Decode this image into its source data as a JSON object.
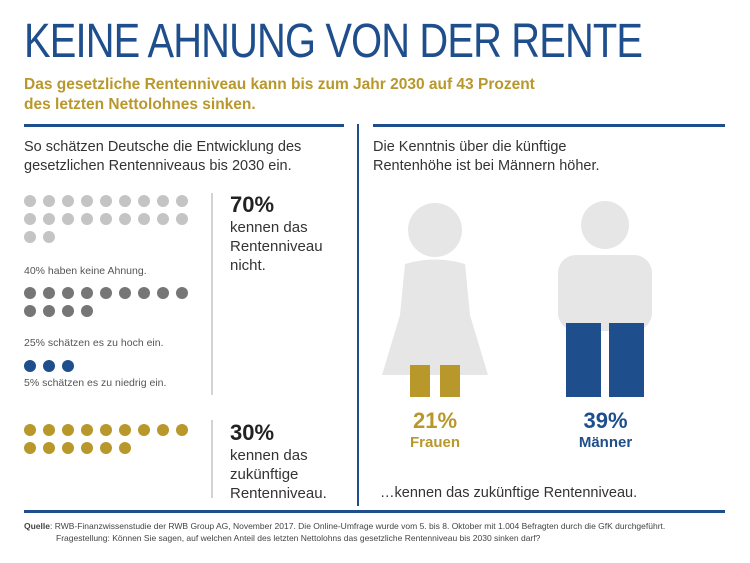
{
  "header": {
    "title": "KEINE AHNUNG VON DER RENTE",
    "subtitle_line1": "Das gesetzliche Rentenniveau kann bis zum Jahr 2030 auf 43 Prozent",
    "subtitle_line2": "des letzten Nettolohnes sinken."
  },
  "left": {
    "intro_line1": "So schätzen Deutsche die Entwicklung des",
    "intro_line2": "gesetzlichen Rentenniveaus bis 2030 ein.",
    "groups": [
      {
        "label": "40% haben keine Ahnung.",
        "count": 40,
        "color": "#c4c4c4"
      },
      {
        "label": "25% schätzen es zu hoch ein.",
        "count": 25,
        "color": "#767676"
      },
      {
        "label": "5% schätzen es zu niedrig ein.",
        "count": 5,
        "color": "#1e4e8c"
      },
      {
        "label": "",
        "count": 30,
        "color": "#b8972b"
      }
    ],
    "stat1": {
      "value": "70%",
      "line1": "kennen das",
      "line2": "Rentenniveau",
      "line3": "nicht."
    },
    "stat2": {
      "value": "30%",
      "line1": "kennen das",
      "line2": "zukünftige",
      "line3": "Rentenniveau."
    }
  },
  "right": {
    "intro_line1": "Die Kenntnis über die künftige",
    "intro_line2": "Rentenhöhe ist bei Männern höher.",
    "women": {
      "value": "21%",
      "label": "Frauen",
      "color": "#b8972b"
    },
    "men": {
      "value": "39%",
      "label": "Männer",
      "color": "#1e4e8c"
    },
    "footer_text": "…kennen das zukünftige Rentenniveau."
  },
  "source": {
    "label": "Quelle",
    "line1": ": RWB-Finanzwissenstudie der RWB Group AG, November 2017. Die Online-Umfrage wurde vom 5. bis 8. Oktober mit 1.004 Befragten durch die GfK durchgeführt.",
    "line2": "Fragestellung: Können Sie sagen, auf welchen Anteil des letzten Nettolohns das gesetzliche Rentenniveau bis 2030 sinken darf?"
  }
}
